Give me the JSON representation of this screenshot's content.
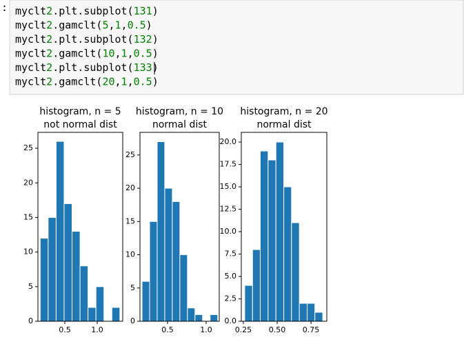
{
  "prompt": ":",
  "code": {
    "lines": [
      "myclt2.plt.subplot(131)",
      "myclt2.gamclt(5,1,0.5)",
      "myclt2.plt.subplot(132)",
      "myclt2.gamclt(10,1,0.5)",
      "myclt2.plt.subplot(133)",
      "myclt2.gamclt(20,1,0.5)"
    ]
  },
  "chart_data": [
    {
      "type": "histogram",
      "title": [
        "histogram, n = 5",
        "not normal dist"
      ],
      "color": "#1f77b4",
      "bins": [
        0.12,
        0.243,
        0.366,
        0.489,
        0.612,
        0.735,
        0.858,
        0.981,
        1.104,
        1.227,
        1.35
      ],
      "values": [
        12,
        15,
        26,
        17,
        13,
        8,
        2,
        5,
        0,
        2
      ],
      "xlim": [
        0.085,
        1.394
      ],
      "xticks": [
        0.5,
        {
          "value": 1.0,
          "label": "1.0"
        }
      ],
      "ylim": [
        0,
        27.3
      ],
      "yticks": [
        0,
        5,
        10,
        15,
        20,
        25
      ]
    },
    {
      "type": "histogram",
      "title": [
        "histogram, n = 10",
        "normal dist"
      ],
      "color": "#1f77b4",
      "bins": [
        0.17,
        0.268,
        0.366,
        0.464,
        0.562,
        0.66,
        0.758,
        0.856,
        0.954,
        1.052,
        1.15
      ],
      "values": [
        6,
        15,
        27,
        20,
        18,
        10,
        2,
        1,
        0,
        1
      ],
      "xlim": [
        0.143,
        1.17
      ],
      "xticks": [
        0.5,
        {
          "value": 1.0,
          "label": "1.0"
        }
      ],
      "ylim": [
        0,
        28.4
      ],
      "yticks": [
        0,
        5,
        10,
        15,
        20,
        25
      ]
    },
    {
      "type": "histogram",
      "title": [
        "histogram, n = 20",
        "normal dist"
      ],
      "color": "#1f77b4",
      "bins": [
        0.26,
        0.318,
        0.375,
        0.433,
        0.491,
        0.549,
        0.606,
        0.664,
        0.722,
        0.779,
        0.837
      ],
      "values": [
        4,
        8,
        19,
        18,
        20,
        15,
        11,
        2,
        2,
        1
      ],
      "xlim": [
        0.235,
        0.867
      ],
      "xticks": [
        0.25,
        {
          "value": 0.5,
          "label": "0.50"
        },
        0.75
      ],
      "ylim": [
        0,
        21.08
      ],
      "yticks": [
        {
          "value": 0,
          "label": "0.0"
        },
        2.5,
        {
          "value": 5,
          "label": "5.0"
        },
        7.5,
        {
          "value": 10,
          "label": "10.0"
        },
        12.5,
        {
          "value": 15,
          "label": "15.0"
        },
        17.5,
        {
          "value": 20,
          "label": "20.0"
        }
      ]
    }
  ]
}
